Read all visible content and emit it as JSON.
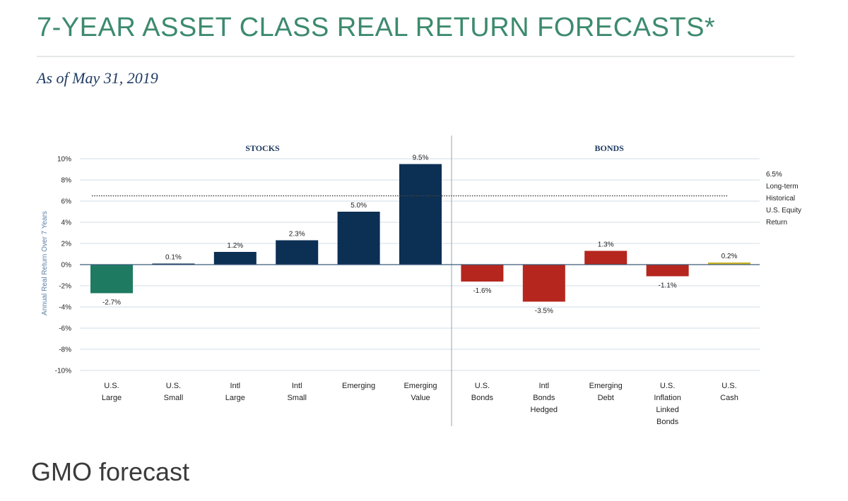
{
  "title": "7-YEAR ASSET CLASS REAL RETURN FORECASTS*",
  "subtitle": "As of May 31, 2019",
  "caption": "GMO forecast",
  "chart_data": {
    "type": "bar",
    "title": "7-YEAR ASSET CLASS REAL RETURN FORECASTS*",
    "subtitle": "As of May 31, 2019",
    "ylabel": "Annual Real Return Over 7 Years",
    "xlabel": "",
    "ylim": [
      -10,
      10
    ],
    "yticks": [
      -10,
      -8,
      -6,
      -4,
      -2,
      0,
      2,
      4,
      6,
      8,
      10
    ],
    "ytick_labels": [
      "-10%",
      "-8%",
      "-6%",
      "-4%",
      "-2%",
      "0%",
      "2%",
      "4%",
      "6%",
      "8%",
      "10%"
    ],
    "grid": true,
    "groups": [
      {
        "name": "STOCKS",
        "start": 0,
        "end": 5
      },
      {
        "name": "BONDS",
        "start": 6,
        "end": 10
      }
    ],
    "categories": [
      [
        "U.S.",
        "Large"
      ],
      [
        "U.S.",
        "Small"
      ],
      [
        "Intl",
        "Large"
      ],
      [
        "Intl",
        "Small"
      ],
      [
        "Emerging"
      ],
      [
        "Emerging",
        "Value"
      ],
      [
        "U.S.",
        "Bonds"
      ],
      [
        "Intl",
        "Bonds",
        "Hedged"
      ],
      [
        "Emerging",
        "Debt"
      ],
      [
        "U.S.",
        "Inflation",
        "Linked",
        "Bonds"
      ],
      [
        "U.S.",
        "Cash"
      ]
    ],
    "values": [
      -2.7,
      0.1,
      1.2,
      2.3,
      5.0,
      9.5,
      -1.6,
      -3.5,
      1.3,
      -1.1,
      0.2
    ],
    "value_labels": [
      "-2.7%",
      "0.1%",
      "1.2%",
      "2.3%",
      "5.0%",
      "9.5%",
      "-1.6%",
      "-3.5%",
      "1.3%",
      "-1.1%",
      "0.2%"
    ],
    "colors": [
      "#1e7b62",
      "#0c2f54",
      "#0c2f54",
      "#0c2f54",
      "#0c2f54",
      "#0c2f54",
      "#b5261e",
      "#b5261e",
      "#b5261e",
      "#b5261e",
      "#c9b22a"
    ],
    "reference_line": {
      "value": 6.5,
      "label_lines": [
        "6.5%",
        "Long-term",
        "Historical",
        "U.S. Equity",
        "Return"
      ]
    }
  }
}
